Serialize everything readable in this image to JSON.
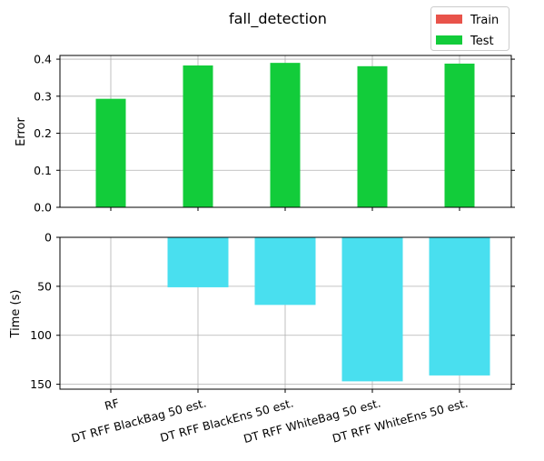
{
  "chart_data": [
    {
      "type": "bar",
      "title": "fall_detection",
      "categories": [
        "RF",
        "DT RFF BlackBag 50 est.",
        "DT RFF BlackEns 50 est.",
        "DT RFF WhiteBag 50 est.",
        "DT RFF WhiteEns 50 est."
      ],
      "xlabel": "",
      "ylabel": "Error",
      "ylim": [
        0,
        0.41
      ],
      "yticks": [
        "0.0",
        "0.1",
        "0.2",
        "0.3",
        "0.4"
      ],
      "grid": true,
      "legend_position": "top-right",
      "series": [
        {
          "name": "Train",
          "color": "#e8534a",
          "values": [
            0,
            0,
            0,
            0,
            0
          ]
        },
        {
          "name": "Test",
          "color": "#12cc3a",
          "values": [
            0.293,
            0.383,
            0.39,
            0.381,
            0.388
          ]
        }
      ]
    },
    {
      "type": "bar",
      "categories": [
        "RF",
        "DT RFF BlackBag 50 est.",
        "DT RFF BlackEns 50 est.",
        "DT RFF WhiteBag 50 est.",
        "DT RFF WhiteEns 50 est."
      ],
      "xlabel": "",
      "ylabel": "Time (s)",
      "ylim": [
        0,
        155
      ],
      "y_inverted": true,
      "yticks": [
        "0",
        "50",
        "100",
        "150"
      ],
      "grid": true,
      "series": [
        {
          "color": "#49dfef",
          "values": [
            0,
            51,
            69,
            147,
            141
          ]
        }
      ]
    }
  ]
}
